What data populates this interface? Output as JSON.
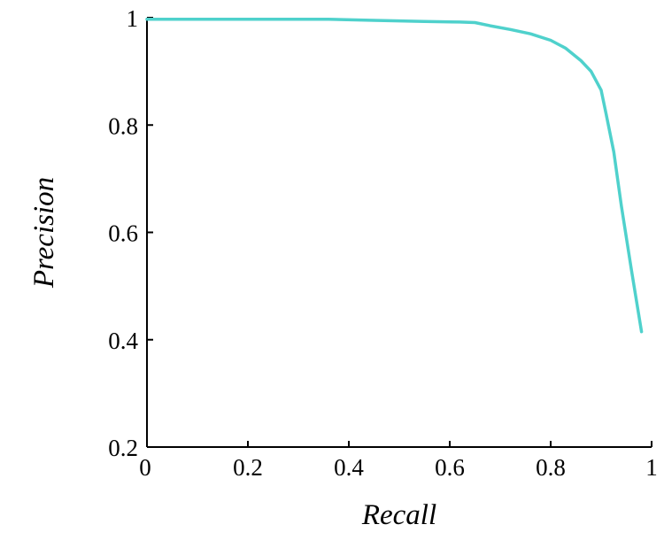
{
  "chart_data": {
    "type": "line",
    "title": "",
    "xlabel": "Recall",
    "ylabel": "Precision",
    "xlim": [
      0,
      1
    ],
    "ylim": [
      0.2,
      1
    ],
    "x_ticks": [
      "0",
      "0.2",
      "0.4",
      "0.6",
      "0.8",
      "1"
    ],
    "y_ticks": [
      "0.2",
      "0.4",
      "0.6",
      "0.8",
      "1"
    ],
    "grid": false,
    "line_color": "#4fd1cc",
    "series": [
      {
        "x": [
          0.0,
          0.1,
          0.2,
          0.3,
          0.36,
          0.45,
          0.55,
          0.62,
          0.65,
          0.68,
          0.72,
          0.76,
          0.8,
          0.83,
          0.86,
          0.88,
          0.9,
          0.91,
          0.925,
          0.94,
          0.96,
          0.98
        ],
        "y": [
          0.997,
          0.997,
          0.997,
          0.997,
          0.997,
          0.995,
          0.993,
          0.992,
          0.991,
          0.985,
          0.978,
          0.97,
          0.958,
          0.943,
          0.92,
          0.9,
          0.865,
          0.82,
          0.75,
          0.65,
          0.53,
          0.415
        ]
      }
    ]
  }
}
